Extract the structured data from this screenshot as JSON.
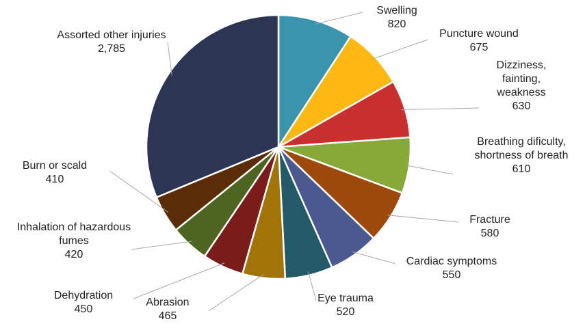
{
  "chart_data": {
    "type": "pie",
    "categories": [
      "Swelling",
      "Puncture wound",
      "Dizziness, fainting, weakness",
      "Breathing dificulty, shortness of breath",
      "Fracture",
      "Cardiac symptoms",
      "Eye trauma",
      "Abrasion",
      "Dehydration",
      "Inhalation of hazardous fumes",
      "Burn or scald",
      "Assorted other injuries"
    ],
    "values": [
      820,
      675,
      630,
      610,
      580,
      550,
      520,
      465,
      450,
      420,
      410,
      2785
    ],
    "value_labels": [
      "820",
      "675",
      "630",
      "610",
      "580",
      "550",
      "520",
      "465",
      "450",
      "420",
      "410",
      "2,785"
    ],
    "colors": [
      "#3a94ad",
      "#fdb813",
      "#c8302f",
      "#86a93a",
      "#9e4a0c",
      "#4a5a90",
      "#225a68",
      "#a07408",
      "#7a1c1c",
      "#4e6522",
      "#5c2c08",
      "#2c3553"
    ]
  }
}
